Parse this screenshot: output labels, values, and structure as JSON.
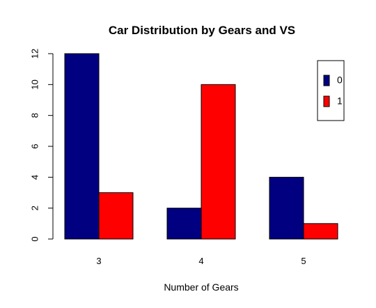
{
  "chart_data": {
    "type": "bar",
    "title": "Car Distribution by Gears and VS",
    "xlabel": "Number of Gears",
    "ylabel": "",
    "categories": [
      "3",
      "4",
      "5"
    ],
    "series": [
      {
        "name": "0",
        "values": [
          12,
          2,
          4
        ],
        "color": "#000080"
      },
      {
        "name": "1",
        "values": [
          3,
          10,
          1
        ],
        "color": "#ff0000"
      }
    ],
    "ylim": [
      0,
      12
    ],
    "yticks": [
      0,
      2,
      4,
      6,
      8,
      10,
      12
    ],
    "grouped": true,
    "grid": false,
    "legend_position": "top-right"
  }
}
